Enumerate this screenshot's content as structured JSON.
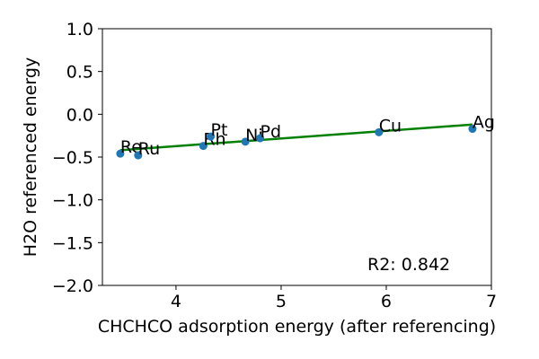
{
  "chart_data": {
    "type": "scatter",
    "title": "",
    "xlabel": "CHCHCO adsorption energy (after referencing)",
    "ylabel": "H2O referenced energy",
    "xlim": [
      3.3,
      7.0
    ],
    "ylim": [
      -2.0,
      1.0
    ],
    "x_ticks": [
      4,
      5,
      6,
      7
    ],
    "y_ticks": [
      1.0,
      0.5,
      0.0,
      -0.5,
      -1.0,
      -1.5,
      -2.0
    ],
    "x_tick_labels": [
      "4",
      "5",
      "6",
      "7"
    ],
    "y_tick_labels": [
      "1.0",
      "0.5",
      "0.0",
      "−0.5",
      "−1.0",
      "−1.5",
      "−2.0"
    ],
    "grid": false,
    "points": [
      {
        "label": "Re",
        "x": 3.47,
        "y": -0.46
      },
      {
        "label": "Ru",
        "x": 3.64,
        "y": -0.48
      },
      {
        "label": "Rh",
        "x": 4.26,
        "y": -0.37
      },
      {
        "label": "Pt",
        "x": 4.33,
        "y": -0.26
      },
      {
        "label": "Ni",
        "x": 4.66,
        "y": -0.32
      },
      {
        "label": "Pd",
        "x": 4.8,
        "y": -0.28
      },
      {
        "label": "Cu",
        "x": 5.93,
        "y": -0.21
      },
      {
        "label": "Ag",
        "x": 6.82,
        "y": -0.17
      }
    ],
    "fit_line": {
      "x": [
        3.47,
        6.82
      ],
      "y": [
        -0.42,
        -0.12
      ]
    },
    "annotation": "R2: 0.842",
    "colors": {
      "points": "#1f77b4",
      "fit_line": "#008000",
      "axes": "#000000"
    }
  }
}
